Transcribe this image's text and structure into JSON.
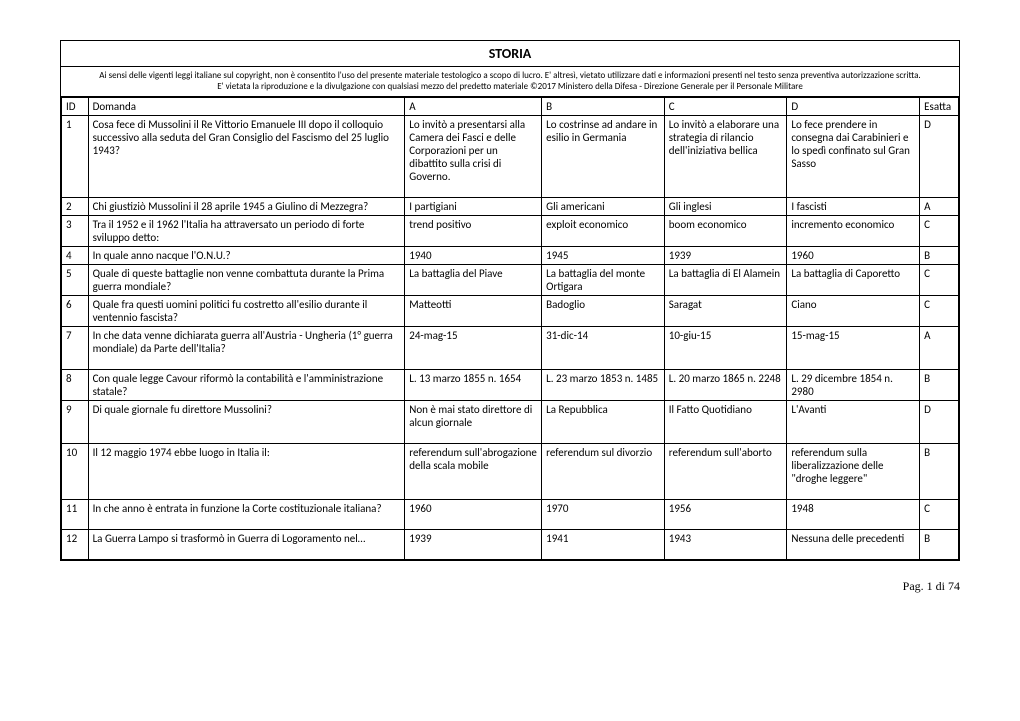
{
  "title": "STORIA",
  "disclaimer_line1": "Ai sensi delle vigenti leggi italiane sul copyright, non è consentito l'uso del presente materiale testologico a scopo di lucro. E' altresì, vietato utilizzare dati e informazioni presenti nel testo senza preventiva autorizzazione scritta.",
  "disclaimer_line2": "E' vietata la riproduzione e la divulgazione con qualsiasi mezzo del predetto materiale ©2017 Ministero della Difesa - Direzione Generale per il Personale Militare",
  "headers": {
    "id": "ID",
    "domanda": "Domanda",
    "a": "A",
    "b": "B",
    "c": "C",
    "d": "D",
    "esatta": "Esatta"
  },
  "rows": [
    {
      "id": "1",
      "q": "Cosa fece di Mussolini il Re Vittorio Emanuele III dopo il colloquio successivo alla seduta del Gran Consiglio del Fascismo del 25 luglio 1943?",
      "a": "Lo invitò a presentarsi alla Camera dei Fasci e delle Corporazioni per un dibattito sulla crisi di Governo.",
      "b": "Lo costrinse ad andare in esilio in Germania",
      "c": "Lo invitò a elaborare una strategia di rilancio dell'iniziativa bellica",
      "d": "Lo fece prendere in consegna dai Carabinieri e lo spedì confinato sul Gran Sasso",
      "e": "D",
      "padded": true
    },
    {
      "id": "2",
      "q": "Chi giustiziò Mussolini il 28 aprile 1945 a Giulino di Mezzegra?",
      "a": "I partigiani",
      "b": "Gli americani",
      "c": "Gli inglesi",
      "d": "I fascisti",
      "e": "A"
    },
    {
      "id": "3",
      "q": "Tra il 1952 e il 1962 l'Italia ha attraversato un periodo di forte sviluppo detto:",
      "a": "trend positivo",
      "b": "exploit economico",
      "c": "boom economico",
      "d": "incremento economico",
      "e": "C"
    },
    {
      "id": "4",
      "q": "In quale anno nacque l'O.N.U.?",
      "a": "1940",
      "b": "1945",
      "c": "1939",
      "d": "1960",
      "e": "B"
    },
    {
      "id": "5",
      "q": "Quale di queste battaglie non venne combattuta durante la Prima guerra mondiale?",
      "a": "La battaglia del Piave",
      "b": "La battaglia del monte Ortigara",
      "c": "La battaglia di El Alamein",
      "d": "La battaglia di Caporetto",
      "e": "C"
    },
    {
      "id": "6",
      "q": "Quale fra questi uomini politici fu costretto all'esilio durante il ventennio fascista?",
      "a": "Matteotti",
      "b": "Badoglio",
      "c": "Saragat",
      "d": "Ciano",
      "e": "C"
    },
    {
      "id": "7",
      "q": "In che data venne dichiarata guerra all'Austria - Ungheria (1° guerra mondiale) da Parte dell'Italia?",
      "a": "24-mag-15",
      "b": "31-dic-14",
      "c": "10-giu-15",
      "d": "15-mag-15",
      "e": "A",
      "padded": true
    },
    {
      "id": "8",
      "q": "Con quale legge Cavour riformò la contabilità e l'amministrazione statale?",
      "a": "L. 13 marzo 1855 n. 1654",
      "b": "L. 23 marzo 1853 n. 1485",
      "c": "L. 20 marzo 1865 n. 2248",
      "d": "L. 29 dicembre 1854 n. 2980",
      "e": "B"
    },
    {
      "id": "9",
      "q": "Di quale giornale fu direttore Mussolini?",
      "a": "Non è mai stato direttore di alcun giornale",
      "b": "La Repubblica",
      "c": "Il Fatto Quotidiano",
      "d": "L'Avanti",
      "e": "D",
      "padded": true
    },
    {
      "id": "10",
      "q": "Il 12 maggio 1974 ebbe luogo in Italia il:",
      "a": "referendum sull'abrogazione della scala mobile",
      "b": "referendum sul divorzio",
      "c": "referendum sull'aborto",
      "d": "referendum sulla liberalizzazione delle \"droghe leggere\"",
      "e": "B",
      "padded": true
    },
    {
      "id": "11",
      "q": "In che anno è entrata in funzione la Corte costituzionale italiana?",
      "a": "1960",
      "b": "1970",
      "c": "1956",
      "d": "1948",
      "e": "C",
      "padded": true
    },
    {
      "id": "12",
      "q": "La Guerra Lampo si trasformò in Guerra di Logoramento nel…",
      "a": "1939",
      "b": "1941",
      "c": "1943",
      "d": "Nessuna delle precedenti",
      "e": "B",
      "padded": true
    }
  ],
  "footer": "Pag. 1 di  74"
}
